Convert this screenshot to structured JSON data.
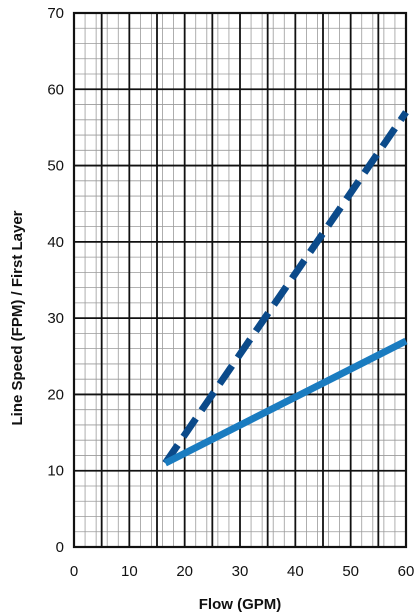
{
  "chart_data": {
    "type": "line",
    "title": "",
    "xlabel": "Flow (GPM)",
    "ylabel": "Line Speed (FPM) / First Layer",
    "xlim": [
      0,
      60
    ],
    "ylim": [
      0,
      70
    ],
    "x_ticks": [
      0,
      10,
      20,
      30,
      40,
      50,
      60
    ],
    "y_ticks": [
      0,
      10,
      20,
      30,
      40,
      50,
      60,
      70
    ],
    "x_tick_labels": [
      "0",
      "10",
      "20",
      "30",
      "40",
      "50",
      "60"
    ],
    "y_tick_labels": [
      "0",
      "10",
      "20",
      "30",
      "40",
      "50",
      "60",
      "70"
    ],
    "grid": {
      "major": true,
      "minor": true
    },
    "legend": "none",
    "series": [
      {
        "style": "dashed",
        "color": "#0b4a8a",
        "points": [
          [
            16.5,
            11
          ],
          [
            60,
            57
          ]
        ]
      },
      {
        "style": "solid",
        "color": "#1a7cc0",
        "points": [
          [
            16.5,
            11
          ],
          [
            60,
            27
          ]
        ]
      }
    ]
  }
}
